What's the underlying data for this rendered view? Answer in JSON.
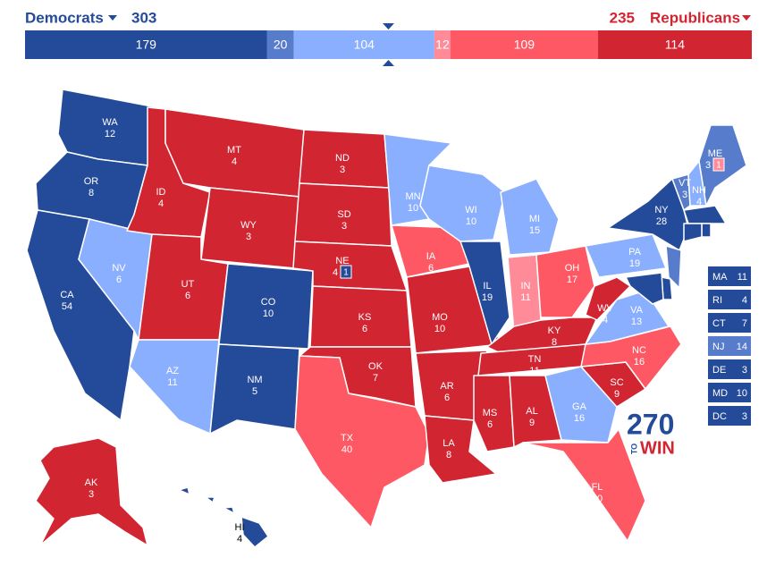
{
  "header": {
    "left": {
      "name": "Democrats",
      "total": 303
    },
    "right": {
      "name": "Republicans",
      "total": 235
    }
  },
  "bar": [
    {
      "value": 179,
      "color": "#244a9a"
    },
    {
      "value": 20,
      "color": "#577ccc"
    },
    {
      "value": 104,
      "color": "#8aafff"
    },
    {
      "value": 12,
      "color": "#ff8b98"
    },
    {
      "value": 109,
      "color": "#ff5865"
    },
    {
      "value": 114,
      "color": "#d22532"
    }
  ],
  "logo": {
    "main": "270",
    "small": "TO",
    "word": "WIN"
  },
  "states": [
    {
      "abbr": "WA",
      "votes": 12,
      "color": "#244a9a"
    },
    {
      "abbr": "OR",
      "votes": 8,
      "color": "#244a9a"
    },
    {
      "abbr": "CA",
      "votes": 54,
      "color": "#244a9a"
    },
    {
      "abbr": "NV",
      "votes": 6,
      "color": "#8aafff"
    },
    {
      "abbr": "ID",
      "votes": 4,
      "color": "#d22532"
    },
    {
      "abbr": "MT",
      "votes": 4,
      "color": "#d22532"
    },
    {
      "abbr": "WY",
      "votes": 3,
      "color": "#d22532"
    },
    {
      "abbr": "UT",
      "votes": 6,
      "color": "#d22532"
    },
    {
      "abbr": "AZ",
      "votes": 11,
      "color": "#8aafff"
    },
    {
      "abbr": "CO",
      "votes": 10,
      "color": "#244a9a"
    },
    {
      "abbr": "NM",
      "votes": 5,
      "color": "#244a9a"
    },
    {
      "abbr": "ND",
      "votes": 3,
      "color": "#d22532"
    },
    {
      "abbr": "SD",
      "votes": 3,
      "color": "#d22532"
    },
    {
      "abbr": "NE",
      "votes": 4,
      "color": "#d22532",
      "district": {
        "votes": 1,
        "color": "#244a9a"
      }
    },
    {
      "abbr": "KS",
      "votes": 6,
      "color": "#d22532"
    },
    {
      "abbr": "OK",
      "votes": 7,
      "color": "#d22532"
    },
    {
      "abbr": "TX",
      "votes": 40,
      "color": "#ff5865"
    },
    {
      "abbr": "MN",
      "votes": 10,
      "color": "#8aafff"
    },
    {
      "abbr": "IA",
      "votes": 6,
      "color": "#ff5865"
    },
    {
      "abbr": "MO",
      "votes": 10,
      "color": "#d22532"
    },
    {
      "abbr": "AR",
      "votes": 6,
      "color": "#d22532"
    },
    {
      "abbr": "LA",
      "votes": 8,
      "color": "#d22532"
    },
    {
      "abbr": "WI",
      "votes": 10,
      "color": "#8aafff"
    },
    {
      "abbr": "IL",
      "votes": 19,
      "color": "#244a9a"
    },
    {
      "abbr": "MI",
      "votes": 15,
      "color": "#8aafff"
    },
    {
      "abbr": "IN",
      "votes": 11,
      "color": "#ff8b98"
    },
    {
      "abbr": "OH",
      "votes": 17,
      "color": "#ff5865"
    },
    {
      "abbr": "KY",
      "votes": 8,
      "color": "#d22532"
    },
    {
      "abbr": "TN",
      "votes": 11,
      "color": "#d22532"
    },
    {
      "abbr": "MS",
      "votes": 6,
      "color": "#d22532"
    },
    {
      "abbr": "AL",
      "votes": 9,
      "color": "#d22532"
    },
    {
      "abbr": "GA",
      "votes": 16,
      "color": "#8aafff"
    },
    {
      "abbr": "FL",
      "votes": 30,
      "color": "#ff5865"
    },
    {
      "abbr": "SC",
      "votes": 9,
      "color": "#d22532"
    },
    {
      "abbr": "NC",
      "votes": 16,
      "color": "#ff5865"
    },
    {
      "abbr": "VA",
      "votes": 13,
      "color": "#8aafff"
    },
    {
      "abbr": "WV",
      "votes": 4,
      "color": "#d22532"
    },
    {
      "abbr": "PA",
      "votes": 19,
      "color": "#8aafff"
    },
    {
      "abbr": "NY",
      "votes": 28,
      "color": "#244a9a"
    },
    {
      "abbr": "VT",
      "votes": 3,
      "color": "#577ccc"
    },
    {
      "abbr": "NH",
      "votes": 4,
      "color": "#8aafff"
    },
    {
      "abbr": "ME",
      "votes": 3,
      "color": "#577ccc",
      "district": {
        "votes": 1,
        "color": "#ff8b98"
      }
    },
    {
      "abbr": "MA",
      "votes": 11,
      "color": "#244a9a"
    },
    {
      "abbr": "RI",
      "votes": 4,
      "color": "#244a9a"
    },
    {
      "abbr": "CT",
      "votes": 7,
      "color": "#244a9a"
    },
    {
      "abbr": "NJ",
      "votes": 14,
      "color": "#577ccc"
    },
    {
      "abbr": "DE",
      "votes": 3,
      "color": "#244a9a"
    },
    {
      "abbr": "MD",
      "votes": 10,
      "color": "#244a9a"
    },
    {
      "abbr": "DC",
      "votes": 3,
      "color": "#244a9a"
    },
    {
      "abbr": "AK",
      "votes": 3,
      "color": "#d22532"
    },
    {
      "abbr": "HI",
      "votes": 4,
      "color": "#244a9a"
    }
  ]
}
